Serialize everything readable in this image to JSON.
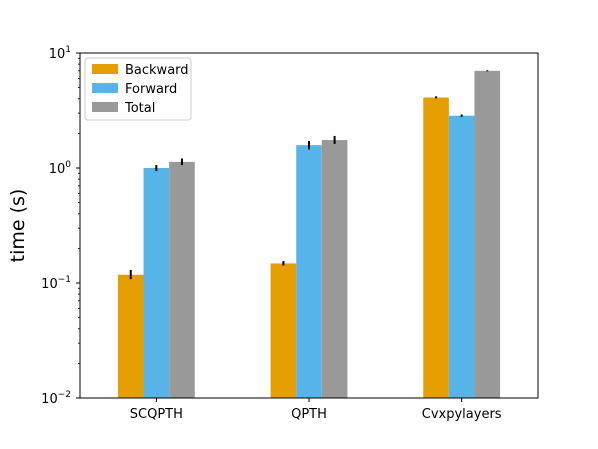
{
  "chart_data": {
    "type": "bar",
    "title": "",
    "xlabel": "",
    "ylabel": "time (s)",
    "yscale": "log",
    "ylim": [
      0.01,
      10
    ],
    "y_ticks": [
      {
        "value": 0.01,
        "base": "10",
        "exp": "−2"
      },
      {
        "value": 0.1,
        "base": "10",
        "exp": "−1"
      },
      {
        "value": 1,
        "base": "10",
        "exp": "0"
      },
      {
        "value": 10,
        "base": "10",
        "exp": "1"
      }
    ],
    "categories": [
      "SCQPTH",
      "QPTH",
      "Cvxpylayers"
    ],
    "series": [
      {
        "name": "Backward",
        "color": "#E69F00",
        "values": [
          0.118,
          0.148,
          4.1
        ],
        "err_low": [
          0.108,
          0.142,
          4.03
        ],
        "err_high": [
          0.13,
          0.155,
          4.2
        ]
      },
      {
        "name": "Forward",
        "color": "#56B4E9",
        "values": [
          1.0,
          1.58,
          2.85
        ],
        "err_low": [
          0.94,
          1.45,
          2.78
        ],
        "err_high": [
          1.06,
          1.72,
          2.92
        ]
      },
      {
        "name": "Total",
        "color": "#999999",
        "values": [
          1.13,
          1.75,
          7.0
        ],
        "err_low": [
          1.06,
          1.62,
          6.93
        ],
        "err_high": [
          1.21,
          1.9,
          7.07
        ]
      }
    ],
    "legend": {
      "position": "top-left",
      "entries": [
        "Backward",
        "Forward",
        "Total"
      ]
    },
    "grid": false
  }
}
